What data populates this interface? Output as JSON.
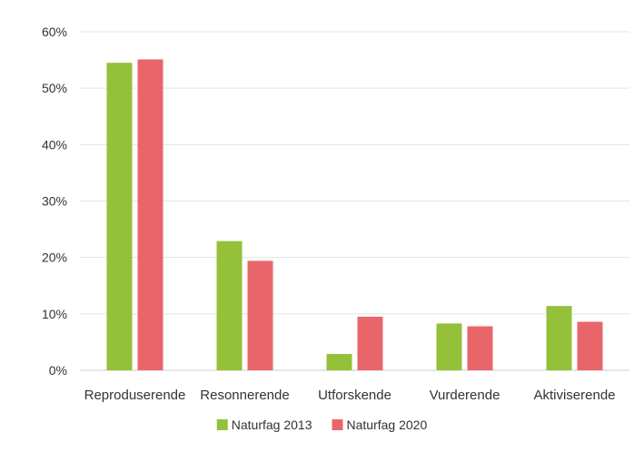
{
  "chart_data": {
    "type": "bar",
    "title": "",
    "xlabel": "",
    "ylabel": "",
    "ylim": [
      0,
      60
    ],
    "y_ticks": [
      0,
      10,
      20,
      30,
      40,
      50,
      60
    ],
    "y_tick_format": "{v}%",
    "grid": true,
    "legend_position": "bottom",
    "categories": [
      "Reproduserende",
      "Resonnerende",
      "Utforskende",
      "Vurderende",
      "Aktiviserende"
    ],
    "series": [
      {
        "name": "Naturfag 2013",
        "color": "#95c03a",
        "values": [
          54.5,
          22.9,
          2.9,
          8.3,
          11.4
        ]
      },
      {
        "name": "Naturfag 2020",
        "color": "#e8666a",
        "values": [
          55.1,
          19.4,
          9.5,
          7.8,
          8.6
        ]
      }
    ]
  }
}
